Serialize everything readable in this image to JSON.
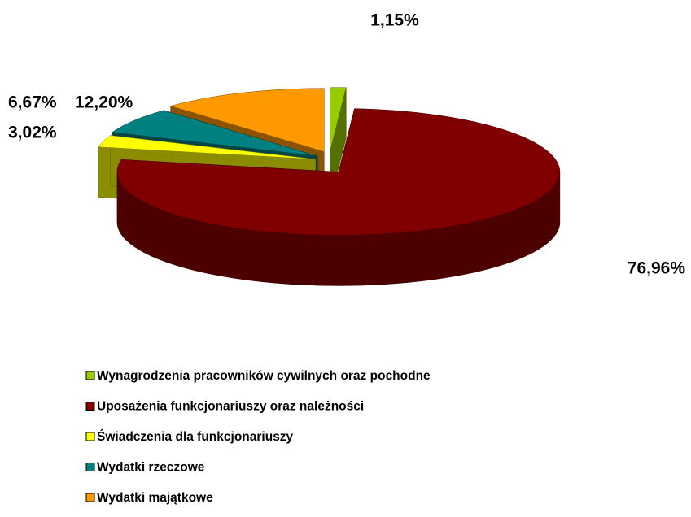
{
  "chart_data": {
    "type": "pie3d",
    "categories": [
      "Wynagrodzenia pracowników cywilnych oraz pochodne",
      "Uposażenia funkcjonariuszy oraz należności",
      "Świadczenia dla funkcjonariuszy",
      "Wydatki rzeczowe",
      "Wydatki majątkowe"
    ],
    "values": [
      1.15,
      76.96,
      3.02,
      6.67,
      12.2
    ],
    "value_labels": [
      "1,15%",
      "76,96%",
      "3,02%",
      "6,67%",
      "12,20%"
    ],
    "colors": [
      "#99cc00",
      "#800000",
      "#ffff00",
      "#008080",
      "#ff9900"
    ]
  }
}
